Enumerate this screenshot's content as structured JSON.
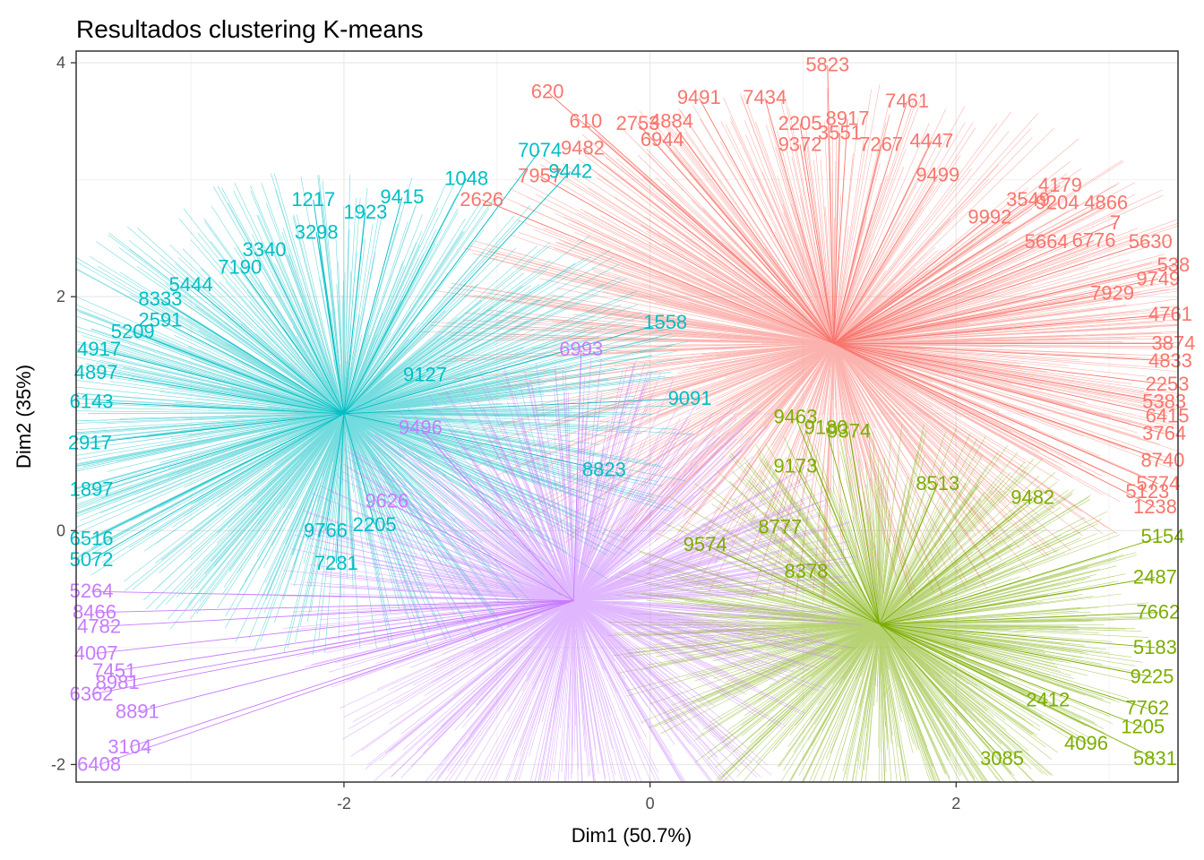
{
  "chart_data": {
    "type": "scatter",
    "title": "Resultados clustering K-means",
    "xlabel": "Dim1 (50.7%)",
    "ylabel": "Dim2 (35%)",
    "xlim": [
      -3.75,
      3.45
    ],
    "ylim": [
      -2.15,
      4.1
    ],
    "x_ticks": [
      -2,
      0,
      2
    ],
    "y_ticks": [
      -2,
      0,
      2,
      4
    ],
    "grid": true,
    "legend": "none",
    "series": [
      {
        "color": "#F8766D",
        "centroid": [
          1.2,
          1.6
        ],
        "points": [
          {
            "x": 1.16,
            "y": 3.98,
            "label": "5823"
          },
          {
            "x": -0.67,
            "y": 3.75,
            "label": "620"
          },
          {
            "x": 0.32,
            "y": 3.7,
            "label": "9491"
          },
          {
            "x": 0.75,
            "y": 3.7,
            "label": "7434"
          },
          {
            "x": 1.68,
            "y": 3.67,
            "label": "7461"
          },
          {
            "x": -0.42,
            "y": 3.5,
            "label": "610"
          },
          {
            "x": -0.08,
            "y": 3.48,
            "label": "2753"
          },
          {
            "x": 0.14,
            "y": 3.5,
            "label": "4884"
          },
          {
            "x": 1.29,
            "y": 3.52,
            "label": "8917"
          },
          {
            "x": 1.24,
            "y": 3.4,
            "label": "3551"
          },
          {
            "x": 0.98,
            "y": 3.48,
            "label": "2205"
          },
          {
            "x": 1.51,
            "y": 3.3,
            "label": "7267"
          },
          {
            "x": 1.84,
            "y": 3.33,
            "label": "4447"
          },
          {
            "x": -0.44,
            "y": 3.27,
            "label": "9482"
          },
          {
            "x": 0.08,
            "y": 3.34,
            "label": "6944"
          },
          {
            "x": 0.98,
            "y": 3.3,
            "label": "9372"
          },
          {
            "x": 1.88,
            "y": 3.04,
            "label": "9499"
          },
          {
            "x": -0.72,
            "y": 3.03,
            "label": "7957"
          },
          {
            "x": 2.68,
            "y": 2.95,
            "label": "4179"
          },
          {
            "x": 2.47,
            "y": 2.83,
            "label": "3549"
          },
          {
            "x": 2.98,
            "y": 2.8,
            "label": "4866"
          },
          {
            "x": 2.66,
            "y": 2.8,
            "label": "9204"
          },
          {
            "x": -1.1,
            "y": 2.83,
            "label": "2626"
          },
          {
            "x": 2.22,
            "y": 2.68,
            "label": "9992"
          },
          {
            "x": 3.04,
            "y": 2.63,
            "label": "7"
          },
          {
            "x": 3.27,
            "y": 2.47,
            "label": "5630"
          },
          {
            "x": 2.9,
            "y": 2.48,
            "label": "6776"
          },
          {
            "x": 2.59,
            "y": 2.47,
            "label": "5664"
          },
          {
            "x": 3.42,
            "y": 2.27,
            "label": "538"
          },
          {
            "x": 3.32,
            "y": 2.15,
            "label": "9749"
          },
          {
            "x": 3.02,
            "y": 2.03,
            "label": "7929"
          },
          {
            "x": 3.4,
            "y": 1.85,
            "label": "4761"
          },
          {
            "x": 3.42,
            "y": 1.6,
            "label": "3874"
          },
          {
            "x": 3.4,
            "y": 1.45,
            "label": "4833"
          },
          {
            "x": 3.38,
            "y": 1.25,
            "label": "2253"
          },
          {
            "x": 3.36,
            "y": 1.1,
            "label": "5383"
          },
          {
            "x": 3.38,
            "y": 0.98,
            "label": "6415"
          },
          {
            "x": 3.36,
            "y": 0.83,
            "label": "3764"
          },
          {
            "x": 3.35,
            "y": 0.6,
            "label": "8740"
          },
          {
            "x": 3.32,
            "y": 0.4,
            "label": "5774"
          },
          {
            "x": 3.25,
            "y": 0.33,
            "label": "5123"
          },
          {
            "x": 3.3,
            "y": 0.2,
            "label": "1238"
          }
        ]
      },
      {
        "color": "#7CAE00",
        "centroid": [
          1.5,
          -0.8
        ],
        "points": [
          {
            "x": 0.95,
            "y": 0.97,
            "label": "9463"
          },
          {
            "x": 1.3,
            "y": 0.85,
            "label": "9374"
          },
          {
            "x": 1.15,
            "y": 0.88,
            "label": "9180"
          },
          {
            "x": 0.85,
            "y": 0.03,
            "label": "8777"
          },
          {
            "x": 0.36,
            "y": -0.12,
            "label": "9574"
          },
          {
            "x": 1.02,
            "y": -0.35,
            "label": "8378"
          },
          {
            "x": 0.95,
            "y": 0.55,
            "label": "9173"
          },
          {
            "x": 1.88,
            "y": 0.4,
            "label": "8513"
          },
          {
            "x": 2.5,
            "y": 0.28,
            "label": "9482"
          },
          {
            "x": 3.35,
            "y": -0.05,
            "label": "5154"
          },
          {
            "x": 3.3,
            "y": -0.4,
            "label": "2487"
          },
          {
            "x": 3.32,
            "y": -0.7,
            "label": "7662"
          },
          {
            "x": 3.3,
            "y": -1.0,
            "label": "5183"
          },
          {
            "x": 3.28,
            "y": -1.25,
            "label": "9225"
          },
          {
            "x": 3.25,
            "y": -1.52,
            "label": "7762"
          },
          {
            "x": 3.22,
            "y": -1.68,
            "label": "1205"
          },
          {
            "x": 3.3,
            "y": -1.95,
            "label": "5831"
          },
          {
            "x": 2.85,
            "y": -1.82,
            "label": "4096"
          },
          {
            "x": 2.3,
            "y": -1.95,
            "label": "3085"
          },
          {
            "x": 2.6,
            "y": -1.45,
            "label": "2412"
          }
        ]
      },
      {
        "color": "#00BFC4",
        "centroid": [
          -2.0,
          1.0
        ],
        "points": [
          {
            "x": -0.72,
            "y": 3.25,
            "label": "7074"
          },
          {
            "x": -0.52,
            "y": 3.07,
            "label": "9442"
          },
          {
            "x": -1.2,
            "y": 3.01,
            "label": "1048"
          },
          {
            "x": -1.62,
            "y": 2.85,
            "label": "9415"
          },
          {
            "x": -2.2,
            "y": 2.83,
            "label": "1217"
          },
          {
            "x": -1.86,
            "y": 2.72,
            "label": "1923"
          },
          {
            "x": -2.18,
            "y": 2.55,
            "label": "3298"
          },
          {
            "x": -2.52,
            "y": 2.4,
            "label": "3340"
          },
          {
            "x": -2.68,
            "y": 2.25,
            "label": "7190"
          },
          {
            "x": -3.0,
            "y": 2.1,
            "label": "5444"
          },
          {
            "x": -3.2,
            "y": 1.98,
            "label": "8333"
          },
          {
            "x": -3.2,
            "y": 1.8,
            "label": "2591"
          },
          {
            "x": -3.38,
            "y": 1.7,
            "label": "5209"
          },
          {
            "x": -3.6,
            "y": 1.55,
            "label": "4917"
          },
          {
            "x": -3.62,
            "y": 1.35,
            "label": "4897"
          },
          {
            "x": -3.65,
            "y": 1.1,
            "label": "6143"
          },
          {
            "x": -3.66,
            "y": 0.75,
            "label": "2917"
          },
          {
            "x": -3.65,
            "y": 0.35,
            "label": "1897"
          },
          {
            "x": -3.65,
            "y": -0.07,
            "label": "6516"
          },
          {
            "x": -3.65,
            "y": -0.25,
            "label": "5072"
          },
          {
            "x": 0.1,
            "y": 1.78,
            "label": "1558"
          },
          {
            "x": -0.3,
            "y": 0.52,
            "label": "8823"
          },
          {
            "x": 0.26,
            "y": 1.13,
            "label": "9091"
          },
          {
            "x": -2.05,
            "y": -0.28,
            "label": "7281"
          },
          {
            "x": -1.8,
            "y": 0.05,
            "label": "2205"
          },
          {
            "x": -2.12,
            "y": 0.0,
            "label": "9766"
          },
          {
            "x": -1.47,
            "y": 1.33,
            "label": "9127"
          }
        ]
      },
      {
        "color": "#C77CFF",
        "centroid": [
          -0.5,
          -0.6
        ],
        "points": [
          {
            "x": -3.65,
            "y": -0.52,
            "label": "5264"
          },
          {
            "x": -3.63,
            "y": -0.7,
            "label": "8466"
          },
          {
            "x": -3.6,
            "y": -0.82,
            "label": "4782"
          },
          {
            "x": -3.62,
            "y": -1.05,
            "label": "4007"
          },
          {
            "x": -3.5,
            "y": -1.2,
            "label": "7451"
          },
          {
            "x": -3.65,
            "y": -1.4,
            "label": "6362"
          },
          {
            "x": -3.35,
            "y": -1.55,
            "label": "8891"
          },
          {
            "x": -3.4,
            "y": -1.85,
            "label": "3104"
          },
          {
            "x": -3.6,
            "y": -2.0,
            "label": "6408"
          },
          {
            "x": -3.48,
            "y": -1.3,
            "label": "8981"
          },
          {
            "x": -1.72,
            "y": 0.25,
            "label": "9626"
          },
          {
            "x": -1.5,
            "y": 0.88,
            "label": "9496"
          },
          {
            "x": -0.45,
            "y": 1.55,
            "label": "6993"
          }
        ]
      }
    ]
  }
}
